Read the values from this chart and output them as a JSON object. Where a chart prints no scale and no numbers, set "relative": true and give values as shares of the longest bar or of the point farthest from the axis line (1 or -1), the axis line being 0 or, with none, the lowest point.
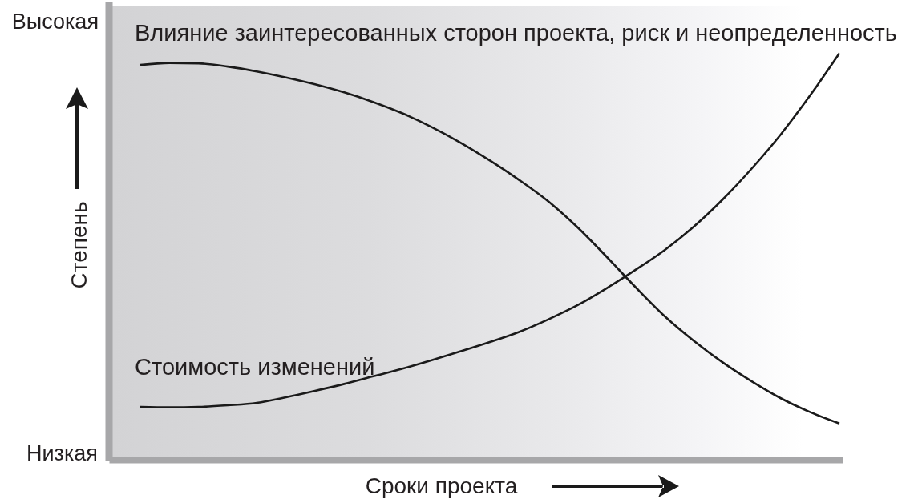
{
  "chart_data": {
    "type": "line",
    "relative": true,
    "xlabel": "Сроки проекта",
    "ylabel": "Степень",
    "annotations": [
      "Высокая",
      "Низкая"
    ],
    "categories": [
      null,
      null,
      null,
      null,
      null,
      null,
      null,
      null,
      null,
      null,
      null,
      null,
      null,
      null,
      null,
      null,
      null,
      null,
      null,
      null,
      null,
      null,
      null,
      null,
      null
    ],
    "series": [
      {
        "name": "Влияние заинтересованных сторон проекта, риск и неопределенность",
        "color": "#1a1a1a",
        "values": [
          0.971,
          0.976,
          0.975,
          0.967,
          0.955,
          0.94,
          0.923,
          0.903,
          0.879,
          0.851,
          0.817,
          0.778,
          0.734,
          0.686,
          0.633,
          0.569,
          0.496,
          0.42,
          0.348,
          0.287,
          0.233,
          0.186,
          0.144,
          0.11,
          0.082
        ]
      },
      {
        "name": "Стоимость изменений",
        "color": "#1a1a1a",
        "values": [
          0.123,
          0.122,
          0.123,
          0.127,
          0.133,
          0.147,
          0.163,
          0.18,
          0.199,
          0.218,
          0.239,
          0.261,
          0.284,
          0.309,
          0.34,
          0.375,
          0.417,
          0.463,
          0.512,
          0.57,
          0.638,
          0.715,
          0.8,
          0.896,
          1
        ]
      }
    ]
  }
}
